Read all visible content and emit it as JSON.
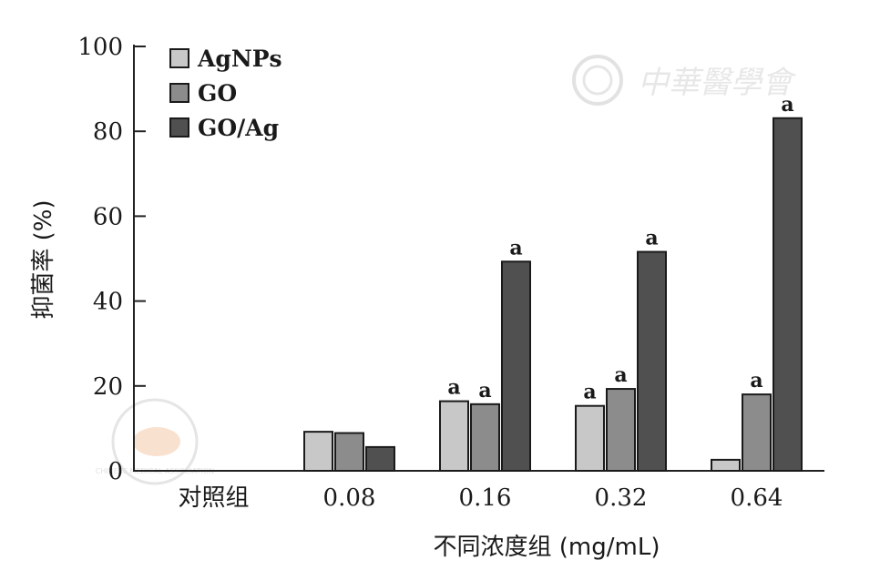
{
  "chart_data": {
    "type": "bar",
    "title": "",
    "xlabel": "不同浓度组 (mg/mL)",
    "ylabel": "抑菌率 (%)",
    "ylim": [
      0,
      100
    ],
    "yticks": [
      0,
      20,
      40,
      60,
      80,
      100
    ],
    "categories": [
      "对照组",
      "0.08",
      "0.16",
      "0.32",
      "0.64"
    ],
    "legend_position": "top-left",
    "series": [
      {
        "name": "AgNPs",
        "color": "#c8c8c8",
        "values": [
          0,
          9.2,
          16.4,
          15.3,
          2.6
        ],
        "labels": [
          "",
          "",
          "a",
          "a",
          ""
        ]
      },
      {
        "name": "GO",
        "color": "#8c8c8c",
        "values": [
          0,
          8.9,
          15.7,
          19.3,
          18.0
        ],
        "labels": [
          "",
          "",
          "a",
          "a",
          "a"
        ]
      },
      {
        "name": "GO/Ag",
        "color": "#505050",
        "values": [
          0,
          5.6,
          49.3,
          51.6,
          83.1
        ],
        "labels": [
          "",
          "",
          "a",
          "a",
          "a"
        ]
      }
    ]
  },
  "watermarks": {
    "right_text": "中華醫學會",
    "left_seal_text": "CHINESE MEDICAL ASSOCIATION"
  }
}
